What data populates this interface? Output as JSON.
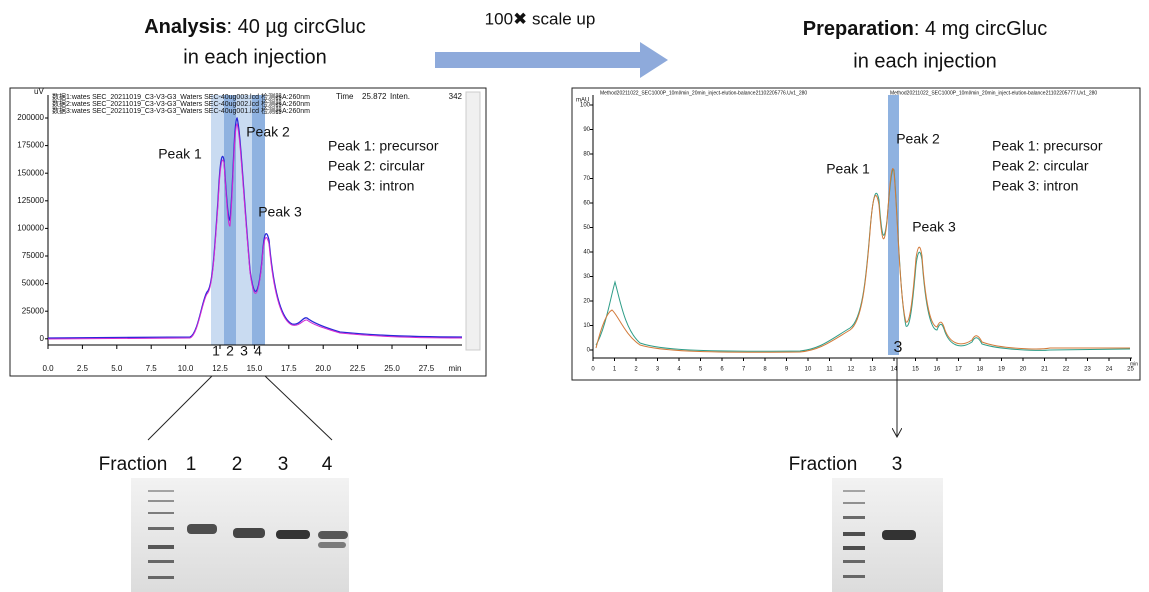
{
  "left_title": {
    "bold": "Analysis",
    "rest": ": 40 µg circGluc",
    "line2": "in each injection"
  },
  "scale_label": "100✖ scale up",
  "right_title": {
    "bold": "Preparation",
    "rest": ": 4 mg circGluc",
    "line2": "in each injection"
  },
  "left_chromatogram": {
    "header_lines": [
      "数据1:wates SEC_20211019_C3-V3-G3_Waters SEC-40ug003.lcd 检测器A:260nm",
      "数据2:wates SEC_20211019_C3-V3-G3_Waters SEC-40ug002.lcd 检测器A:260nm",
      "数据3:wates SEC_20211019_C3-V3-G3_Waters SEC-40ug001.lcd 检测器A:260nm"
    ],
    "y_unit": "uV",
    "time_label": "Time",
    "time_value": "25.872",
    "inten_label": "Inten.",
    "inten_value": "342",
    "y_ticks": [
      "200000",
      "175000",
      "150000",
      "125000",
      "100000",
      "75000",
      "50000",
      "25000",
      "0"
    ],
    "x_ticks": [
      "0.0",
      "2.5",
      "5.0",
      "7.5",
      "10.0",
      "12.5",
      "15.0",
      "17.5",
      "20.0",
      "22.5",
      "25.0",
      "27.5"
    ],
    "x_unit": "min",
    "peak_labels": [
      "Peak 1",
      "Peak 2",
      "Peak 3"
    ],
    "legend": [
      "Peak 1: precursor",
      "Peak 2: circular",
      "Peak 3: intron"
    ],
    "fractions": [
      "1",
      "2",
      "3",
      "4"
    ]
  },
  "right_chromatogram": {
    "header_lines": [
      "Method20211022_SEC1000P_10ml/min_20min_inject-elution-balance21102205776.Uv1_280",
      "Method20211022_SEC1000P_10ml/min_20min_inject-elution-balance21102205777.Uv1_280"
    ],
    "y_unit": "mAU",
    "y_ticks": [
      "100",
      "90",
      "80",
      "70",
      "60",
      "50",
      "40",
      "30",
      "20",
      "10",
      "0"
    ],
    "x_ticks": [
      "0",
      "1",
      "2",
      "3",
      "4",
      "5",
      "6",
      "7",
      "8",
      "9",
      "10",
      "11",
      "12",
      "13",
      "14",
      "15",
      "16",
      "17",
      "18",
      "19",
      "20",
      "21",
      "22",
      "23",
      "24",
      "25"
    ],
    "x_unit": "min",
    "peak_labels": [
      "Peak 1",
      "Peak 2",
      "Peak 3"
    ],
    "legend": [
      "Peak 1: precursor",
      "Peak 2: circular",
      "Peak 3: intron"
    ],
    "fraction": "3"
  },
  "left_gel": {
    "label": "Fraction",
    "lanes": [
      "1",
      "2",
      "3",
      "4"
    ]
  },
  "right_gel": {
    "label": "Fraction",
    "lanes": [
      "3"
    ]
  }
}
